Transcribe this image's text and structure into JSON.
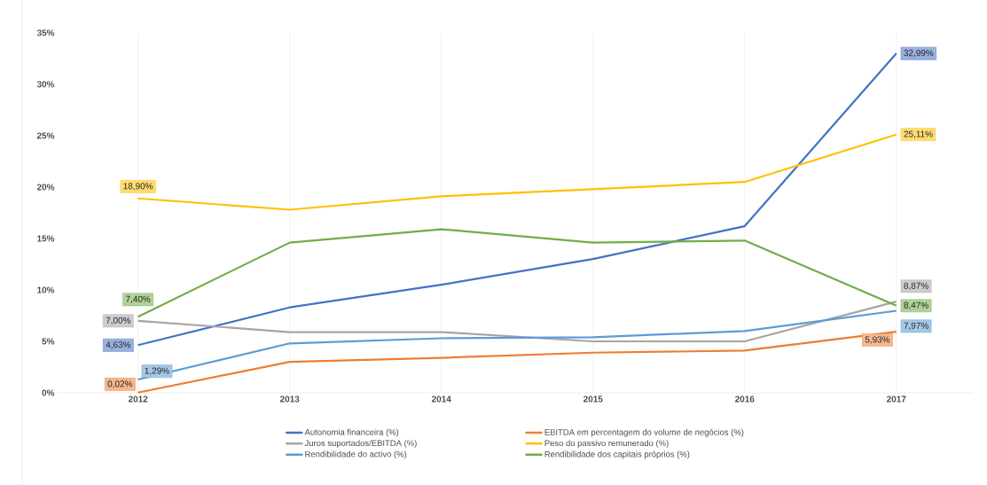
{
  "chart_data": {
    "type": "line",
    "categories": [
      "2012",
      "2013",
      "2014",
      "2015",
      "2016",
      "2017"
    ],
    "ylim": [
      0,
      35
    ],
    "yticks": [
      {
        "value": 0,
        "label": "0%"
      },
      {
        "value": 5,
        "label": "5%"
      },
      {
        "value": 10,
        "label": "10%"
      },
      {
        "value": 15,
        "label": "15%"
      },
      {
        "value": 20,
        "label": "20%"
      },
      {
        "value": 25,
        "label": "25%"
      },
      {
        "value": 30,
        "label": "30%"
      },
      {
        "value": 35,
        "label": "35%"
      }
    ],
    "grid": "x",
    "legend": "bottom",
    "marker": "none",
    "line_style": "solid",
    "series": [
      {
        "name": "Autonomia financeira (%)",
        "color": "#4472c4",
        "values": [
          4.63,
          8.3,
          10.5,
          13.0,
          16.2,
          32.99
        ],
        "value_labels": [
          "4,63%",
          null,
          null,
          null,
          null,
          "32,99%"
        ]
      },
      {
        "name": "EBITDA em percentagem do volume de negócios (%)",
        "color": "#ed7d31",
        "values": [
          0.02,
          3.0,
          3.4,
          3.9,
          4.1,
          5.93
        ],
        "value_labels": [
          "0,02%",
          null,
          null,
          null,
          null,
          "5,93%"
        ]
      },
      {
        "name": "Juros suportados/EBITDA (%)",
        "color": "#a5a5a5",
        "values": [
          7.0,
          5.9,
          5.9,
          5.0,
          5.0,
          8.87
        ],
        "value_labels": [
          "7,00%",
          null,
          null,
          null,
          null,
          "8,87%"
        ]
      },
      {
        "name": "Peso do passivo remunerado (%)",
        "color": "#ffc000",
        "values": [
          18.9,
          17.8,
          19.1,
          19.8,
          20.5,
          25.11
        ],
        "value_labels": [
          "18,90%",
          null,
          null,
          null,
          null,
          "25,11%"
        ]
      },
      {
        "name": "Rendibilidade do activo (%)",
        "color": "#5b9bd5",
        "values": [
          1.29,
          4.8,
          5.3,
          5.4,
          6.0,
          7.97
        ],
        "value_labels": [
          "1,29%",
          null,
          null,
          null,
          null,
          "7,97%"
        ]
      },
      {
        "name": "Rendibilidade dos capitais próprios (%)",
        "color": "#70ad47",
        "values": [
          7.4,
          14.6,
          15.9,
          14.6,
          14.8,
          8.47
        ],
        "value_labels": [
          "7,40%",
          null,
          null,
          null,
          null,
          "8,47%"
        ]
      }
    ]
  }
}
